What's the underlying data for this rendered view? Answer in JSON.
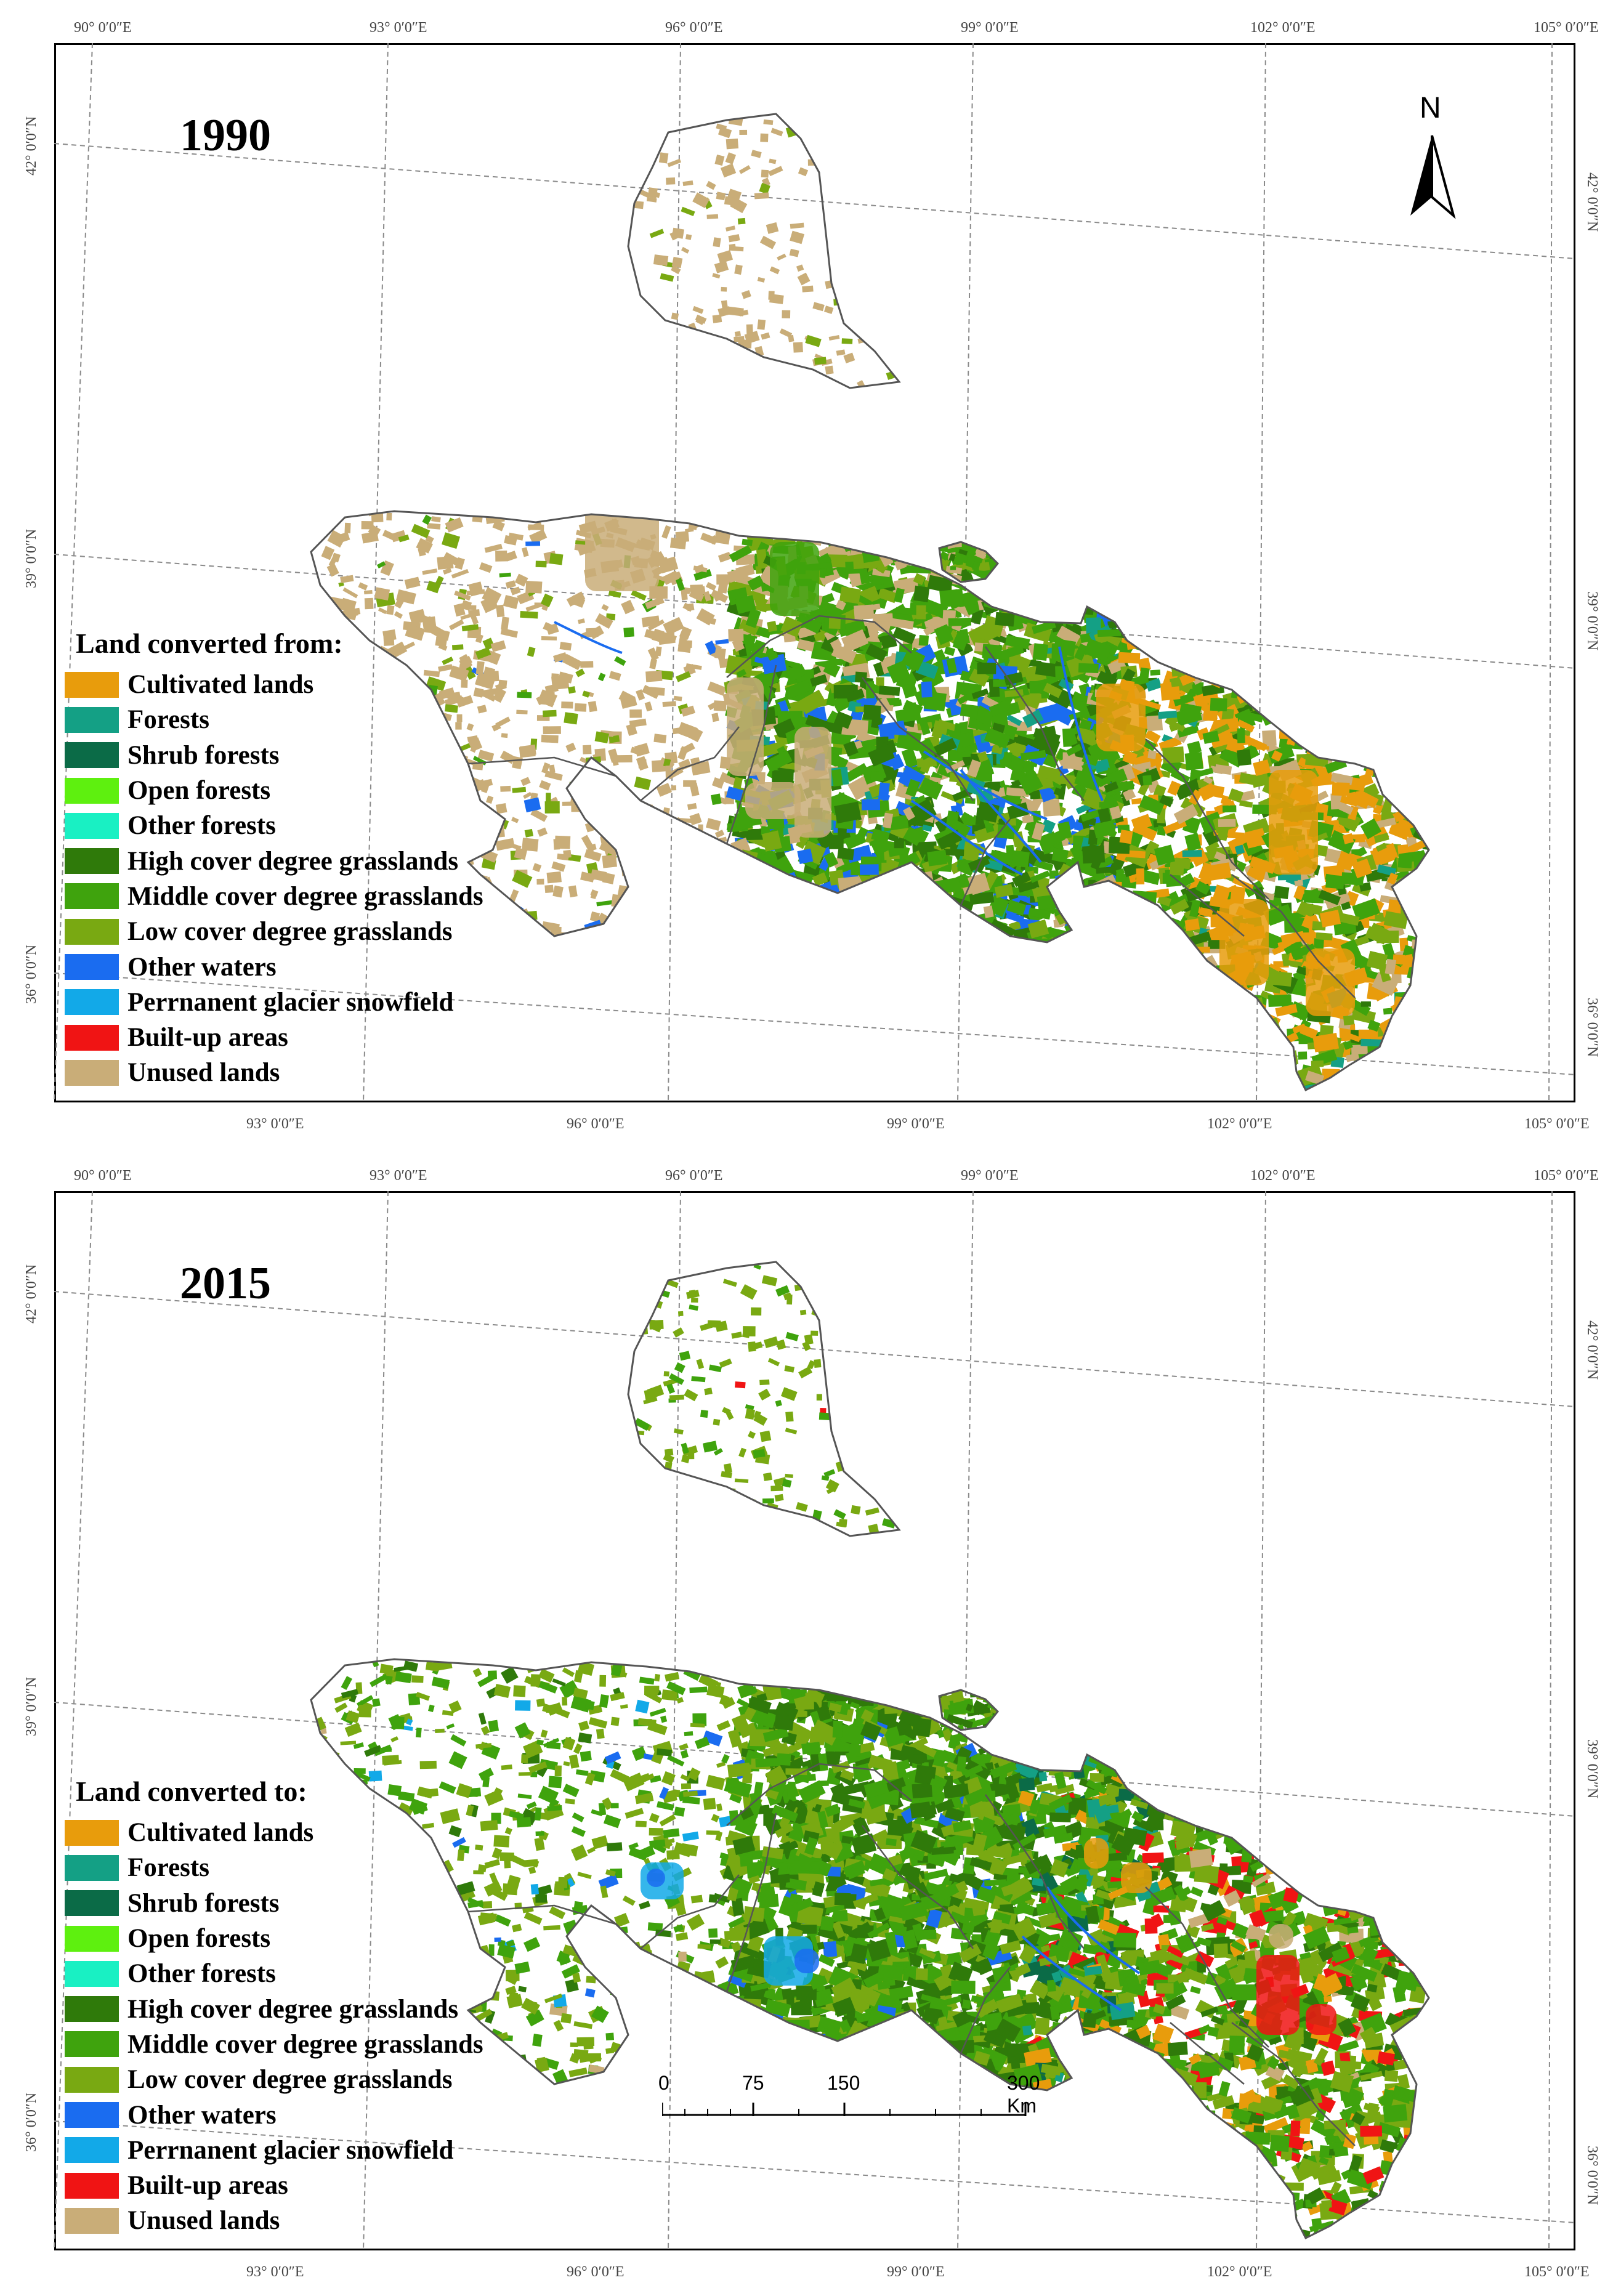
{
  "colors": {
    "cultivated": "#e89c0c",
    "forests": "#14a085",
    "shrub": "#0b6b47",
    "open_forests": "#5ef00f",
    "other_forests": "#19f0c3",
    "high_grass": "#2f7a0a",
    "middle_grass": "#3fa30d",
    "low_grass": "#79a912",
    "other_waters": "#1a6cf0",
    "glacier": "#12a9e8",
    "builtup": "#f01414",
    "unused": "#c9ad78"
  },
  "coordinate_labels": {
    "top_longitudes": [
      "90° 0′0″E",
      "93° 0′0″E",
      "96° 0′0″E",
      "99° 0′0″E",
      "102° 0′0″E",
      "105° 0′0″E"
    ],
    "bottom_longitudes": [
      "93° 0′0″E",
      "96° 0′0″E",
      "99° 0′0″E",
      "102° 0′0″E",
      "105° 0′0″E"
    ],
    "left_latitudes": [
      "42° 0′0″N",
      "39° 0′0″N",
      "36° 0′0″N"
    ],
    "right_latitudes": [
      "42° 0′0″N",
      "39° 0′0″N",
      "36° 0′0″N"
    ]
  },
  "legend_items": [
    {
      "label": "Cultivated lands",
      "color": "#e89c0c"
    },
    {
      "label": "Forests",
      "color": "#14a085"
    },
    {
      "label": "Shrub forests",
      "color": "#0b6b47"
    },
    {
      "label": "Open forests",
      "color": "#5ef00f"
    },
    {
      "label": "Other forests",
      "color": "#19f0c3"
    },
    {
      "label": "High cover degree grasslands",
      "color": "#2f7a0a"
    },
    {
      "label": "Middle cover degree grasslands",
      "color": "#3fa30d"
    },
    {
      "label": "Low cover degree grasslands",
      "color": "#79a912"
    },
    {
      "label": "Other waters",
      "color": "#1a6cf0"
    },
    {
      "label": "Perrnanent glacier snowfield",
      "color": "#12a9e8"
    },
    {
      "label": "Built-up areas",
      "color": "#f01414"
    },
    {
      "label": "Unused lands",
      "color": "#c9ad78"
    }
  ],
  "panels": [
    {
      "year": "1990",
      "legend_title": "Land converted from:"
    },
    {
      "year": "2015",
      "legend_title": "Land converted to:"
    }
  ],
  "north_arrow": {
    "label": "N"
  },
  "scale_bar": {
    "labels": [
      "0",
      "75",
      "150",
      "300 Km"
    ]
  }
}
